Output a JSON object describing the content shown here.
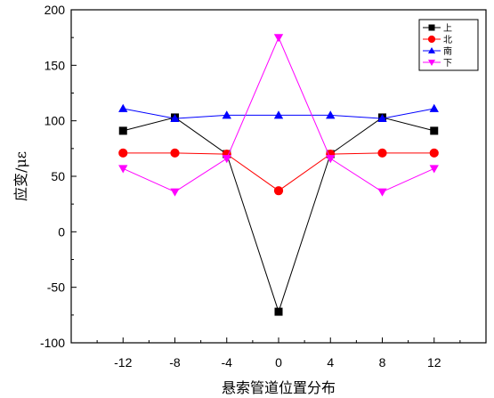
{
  "chart_data": {
    "type": "line",
    "xlabel": "悬索管道位置分布",
    "ylabel": "应变/με",
    "xlim": [
      -16,
      16
    ],
    "ylim": [
      -100,
      200
    ],
    "x_ticks": [
      -12,
      -8,
      -4,
      0,
      4,
      8,
      12
    ],
    "y_ticks": [
      -100,
      -50,
      0,
      50,
      100,
      150,
      200
    ],
    "grid": false,
    "legend_position": "top-right",
    "x": [
      -12,
      -8,
      -4,
      0,
      4,
      8,
      12
    ],
    "series": [
      {
        "name": "上",
        "marker": "square",
        "color": "#000000",
        "values": [
          91,
          103,
          70,
          -72,
          70,
          103,
          91
        ]
      },
      {
        "name": "北",
        "marker": "circle",
        "color": "#ff0000",
        "values": [
          71,
          71,
          70,
          37,
          70,
          71,
          71
        ]
      },
      {
        "name": "南",
        "marker": "triangle-up",
        "color": "#0000ff",
        "values": [
          111,
          102,
          105,
          105,
          105,
          102,
          111
        ]
      },
      {
        "name": "下",
        "marker": "triangle-down",
        "color": "#ff00ff",
        "values": [
          57,
          36,
          66,
          175,
          66,
          36,
          57
        ]
      }
    ]
  }
}
